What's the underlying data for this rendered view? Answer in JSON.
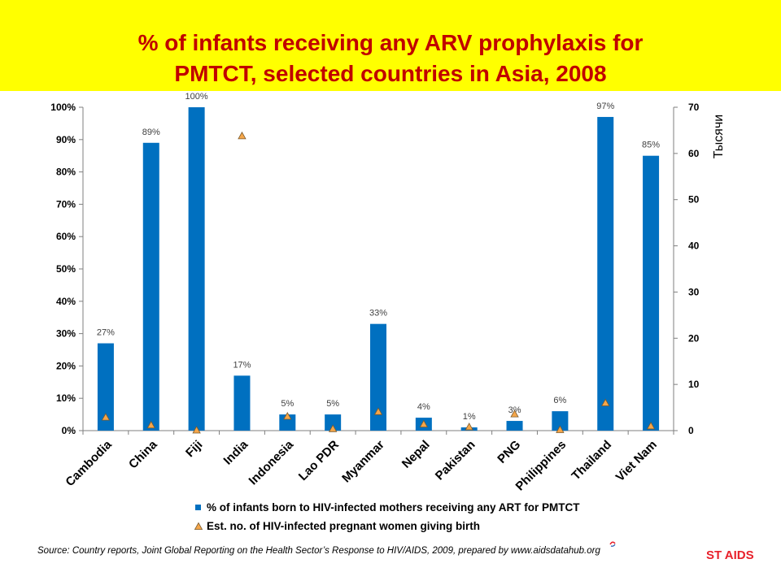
{
  "title_line1": "% of infants receiving any ARV prophylaxis for",
  "title_line2": "PMTCT, selected countries in Asia, 2008",
  "source": "Source: Country reports, Joint Global Reporting on the Health Sector’s Response to HIV/AIDS, 2009, prepared by www.aidsdatahub.org",
  "logo_text": "ST AIDS",
  "colors": {
    "title_band": "#ffff00",
    "title_text": "#c00000",
    "bar": "#0070c0",
    "marker_fill": "#f5a64a",
    "marker_stroke": "#7a5b2e",
    "logo": "#e8202a"
  },
  "chart_data": {
    "type": "bar",
    "categories": [
      "Cambodia",
      "China",
      "Fiji",
      "India",
      "Indonesia",
      "Lao PDR",
      "Myanmar",
      "Nepal",
      "Pakistan",
      "PNG",
      "Philippines",
      "Thailand",
      "Viet Nam"
    ],
    "series": [
      {
        "name": "% of infants born to HIV-infected mothers receiving any ART for PMTCT",
        "type": "bar",
        "axis": "left",
        "values": [
          27,
          89,
          100,
          17,
          5,
          5,
          33,
          4,
          1,
          3,
          6,
          97,
          85
        ],
        "labels": [
          "27%",
          "89%",
          "100%",
          "17%",
          "5%",
          "5%",
          "33%",
          "4%",
          "1%",
          "3%",
          "6%",
          "97%",
          "85%"
        ]
      },
      {
        "name": "Est. no. of HIV-infected pregnant women giving birth",
        "type": "scatter",
        "axis": "right",
        "values": [
          2.9,
          1.2,
          0.1,
          63.8,
          3.1,
          0.4,
          4.1,
          1.4,
          0.8,
          3.6,
          0.2,
          6.0,
          1.0
        ]
      }
    ],
    "y_left": {
      "ylim": [
        0,
        100
      ],
      "ticks": [
        "0%",
        "10%",
        "20%",
        "30%",
        "40%",
        "50%",
        "60%",
        "70%",
        "80%",
        "90%",
        "100%"
      ]
    },
    "y_right": {
      "label": "Тысячи",
      "ylim": [
        0,
        70
      ],
      "ticks": [
        "0",
        "10",
        "20",
        "30",
        "40",
        "50",
        "60",
        "70"
      ]
    },
    "grid": false,
    "legend": "bottom"
  }
}
